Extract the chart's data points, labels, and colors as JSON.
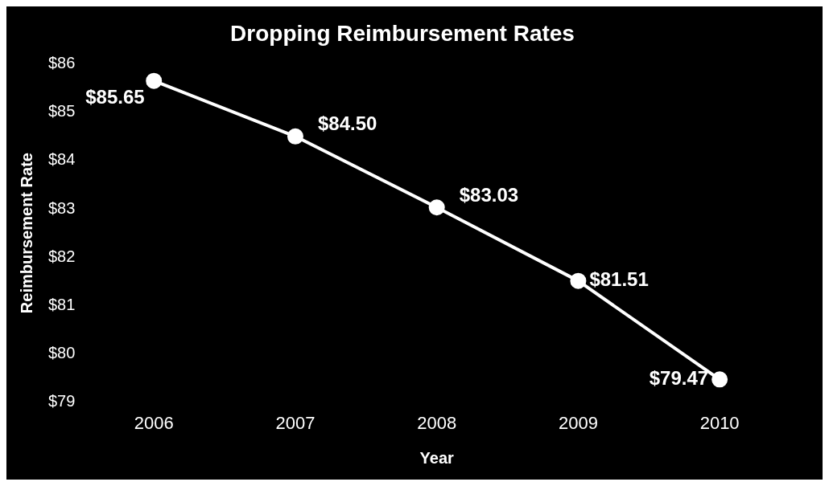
{
  "chart_data": {
    "type": "line",
    "title": "Dropping Reimbursement Rates",
    "xlabel": "Year",
    "ylabel": "Reimbursement Rate",
    "categories": [
      "2006",
      "2007",
      "2008",
      "2009",
      "2010"
    ],
    "series": [
      {
        "color": "#ffffff",
        "values": [
          85.65,
          84.5,
          83.03,
          81.51,
          79.47
        ],
        "value_labels": [
          "$85.65",
          "$84.50",
          "$83.03",
          "$81.51",
          "$79.47"
        ]
      }
    ],
    "ylim": [
      79,
      86
    ],
    "yticks": [
      {
        "value": 79,
        "label": "$79"
      },
      {
        "value": 80,
        "label": "$80"
      },
      {
        "value": 81,
        "label": "$81"
      },
      {
        "value": 82,
        "label": "$82"
      },
      {
        "value": 83,
        "label": "$83"
      },
      {
        "value": 84,
        "label": "$84"
      },
      {
        "value": 85,
        "label": "$85"
      },
      {
        "value": 86,
        "label": "$86"
      }
    ],
    "grid": false,
    "legend": false,
    "marker": "circle",
    "line_style": "solid"
  }
}
